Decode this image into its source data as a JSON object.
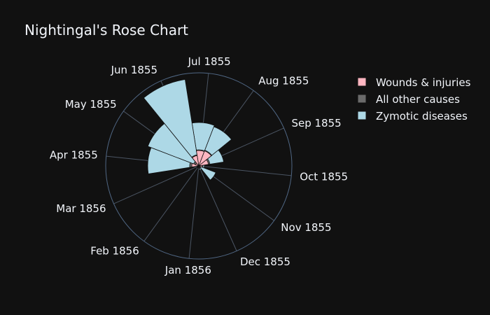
{
  "chart_data": {
    "type": "barpolar",
    "title": "Nightingal's Rose Chart",
    "categories": [
      "Jul 1855",
      "Aug 1855",
      "Sep 1855",
      "Oct 1855",
      "Nov 1855",
      "Dec 1855",
      "Jan 1856",
      "Feb 1856",
      "Mar 1856",
      "Apr 1855",
      "May 1855",
      "Jun 1855"
    ],
    "radial_range": [
      0,
      133
    ],
    "series": [
      {
        "name": "Zymotic diseases",
        "color": "#add8e6",
        "values": [
          62,
          60,
          36,
          8,
          26,
          6,
          3,
          3,
          3,
          73,
          78,
          125
        ]
      },
      {
        "name": "All other causes",
        "color": "#6b6b6b",
        "values": [
          23,
          24,
          16,
          6,
          3,
          4,
          3,
          3,
          3,
          13,
          8,
          16
        ]
      },
      {
        "name": "Wounds & injuries",
        "color": "#ffb6c1",
        "values": [
          22,
          23,
          14,
          5,
          2,
          3,
          2,
          2,
          2,
          10,
          5,
          15
        ]
      }
    ],
    "legend_order": [
      "Wounds & injuries",
      "All other causes",
      "Zymotic diseases"
    ],
    "legend_position": "top-right"
  }
}
